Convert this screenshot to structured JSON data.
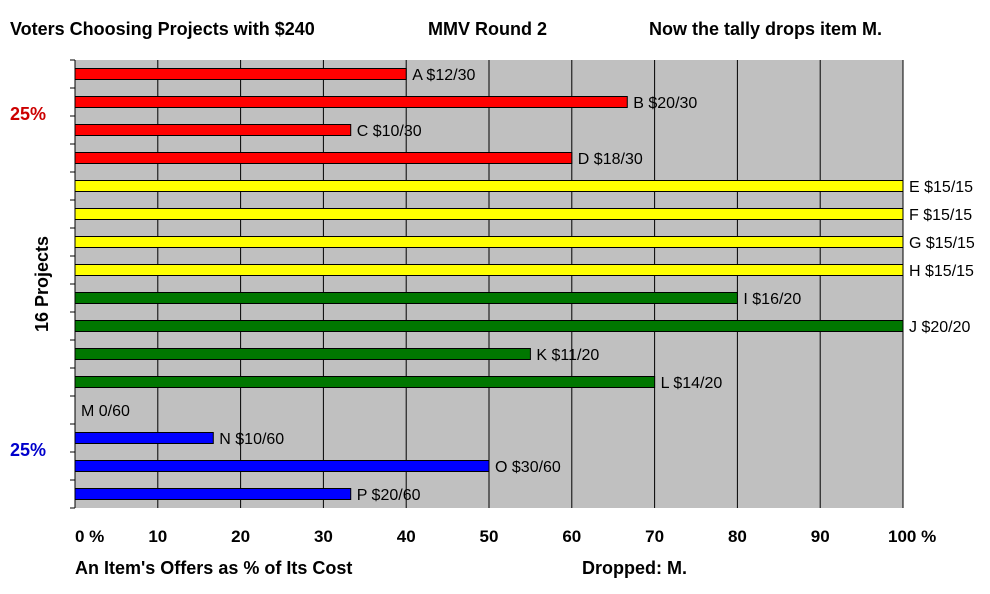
{
  "header": {
    "title": "Voters Choosing Projects with $240",
    "round": "MMV Round 2",
    "note": "Now the tally drops item M."
  },
  "side_labels": {
    "top": "25%",
    "bottom": "25%"
  },
  "footer": {
    "left": "An Item's Offers as % of Its Cost",
    "right": "Dropped: M."
  },
  "colors": {
    "plot_bg": "#c0c0c0",
    "red": "#ff0000",
    "yellow": "#ffff00",
    "green": "#007700",
    "blue": "#0000ff",
    "side_top": "#cc0000",
    "side_bottom": "#0000cc"
  },
  "chart_data": {
    "type": "bar",
    "orientation": "horizontal",
    "ylabel": "16 Projects",
    "xlim": [
      0,
      100
    ],
    "x_ticks": [
      "0 %",
      "10",
      "20",
      "30",
      "40",
      "50",
      "60",
      "70",
      "80",
      "90",
      "100 %"
    ],
    "grid": true,
    "bars": [
      {
        "label": "A $12/30",
        "value": 40,
        "color": "red"
      },
      {
        "label": "B $20/30",
        "value": 66.7,
        "color": "red"
      },
      {
        "label": "C $10/30",
        "value": 33.3,
        "color": "red"
      },
      {
        "label": "D $18/30",
        "value": 60,
        "color": "red"
      },
      {
        "label": "E $15/15",
        "value": 100,
        "color": "yellow"
      },
      {
        "label": "F $15/15",
        "value": 100,
        "color": "yellow"
      },
      {
        "label": "G $15/15",
        "value": 100,
        "color": "yellow"
      },
      {
        "label": "H $15/15",
        "value": 100,
        "color": "yellow"
      },
      {
        "label": "I $16/20",
        "value": 80,
        "color": "green"
      },
      {
        "label": "J $20/20",
        "value": 100,
        "color": "green"
      },
      {
        "label": "K $11/20",
        "value": 55,
        "color": "green"
      },
      {
        "label": "L $14/20",
        "value": 70,
        "color": "green"
      },
      {
        "label": "M 0/60",
        "value": 0,
        "color": "blue"
      },
      {
        "label": "N $10/60",
        "value": 16.7,
        "color": "blue"
      },
      {
        "label": "O $30/60",
        "value": 50,
        "color": "blue"
      },
      {
        "label": "P $20/60",
        "value": 33.3,
        "color": "blue"
      }
    ]
  }
}
